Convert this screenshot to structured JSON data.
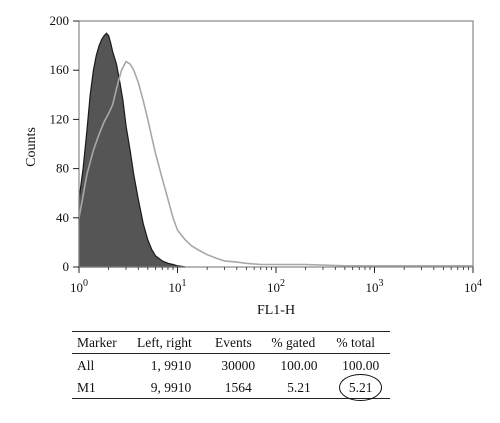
{
  "chart_data": {
    "type": "area",
    "title": "",
    "xlabel": "FL1-H",
    "ylabel": "Counts",
    "xscale": "log",
    "xlim": [
      1,
      10000
    ],
    "ylim": [
      0,
      200
    ],
    "grid": false,
    "x_ticks": [
      {
        "base": "10",
        "exp": "0",
        "value": 1
      },
      {
        "base": "10",
        "exp": "1",
        "value": 10
      },
      {
        "base": "10",
        "exp": "2",
        "value": 100
      },
      {
        "base": "10",
        "exp": "3",
        "value": 1000
      },
      {
        "base": "10",
        "exp": "4",
        "value": 10000
      }
    ],
    "y_ticks": [
      0,
      40,
      80,
      120,
      160,
      200
    ],
    "series": [
      {
        "style": "filled",
        "color": "#555555",
        "x": [
          1.0,
          1.1,
          1.2,
          1.3,
          1.4,
          1.5,
          1.6,
          1.7,
          1.8,
          1.9,
          2.0,
          2.1,
          2.2,
          2.4,
          2.6,
          2.8,
          3.0,
          3.3,
          3.6,
          4.0,
          4.5,
          5.0,
          5.5,
          6.0,
          7.0,
          8.0,
          9.0,
          10.0,
          11.0,
          12.0
        ],
        "y": [
          55,
          80,
          110,
          140,
          160,
          172,
          180,
          185,
          188,
          190,
          188,
          182,
          175,
          165,
          150,
          135,
          115,
          95,
          75,
          55,
          35,
          22,
          14,
          9,
          5,
          3,
          2,
          1,
          0.5,
          0
        ]
      },
      {
        "style": "outline",
        "color": "#a8a8a8",
        "x": [
          1.0,
          1.1,
          1.2,
          1.4,
          1.6,
          1.8,
          2.0,
          2.2,
          2.4,
          2.7,
          3.0,
          3.3,
          3.6,
          4.0,
          4.5,
          5.0,
          5.5,
          6.0,
          7.0,
          8.0,
          9.0,
          10.0,
          12.0,
          14.0,
          17.0,
          20.0,
          25.0,
          30.0,
          40.0,
          50.0,
          70.0,
          100.0,
          200.0,
          500.0,
          1000.0,
          3000.0,
          10000.0
        ],
        "y": [
          40,
          58,
          75,
          95,
          108,
          118,
          125,
          132,
          145,
          160,
          167,
          165,
          160,
          150,
          135,
          120,
          105,
          92,
          72,
          55,
          40,
          30,
          22,
          17,
          13,
          10,
          7,
          5,
          4,
          3,
          2,
          2,
          2,
          1,
          1,
          1,
          1
        ]
      }
    ]
  },
  "table": {
    "columns": [
      "Marker",
      "Left, right",
      "Events",
      "% gated",
      "% total"
    ],
    "rows": [
      {
        "marker": "All",
        "range": "1, 9910",
        "events": "30000",
        "gated": "100.00",
        "total": "100.00"
      },
      {
        "marker": "M1",
        "range": "9, 9910",
        "events": "1564",
        "gated": "5.21",
        "total": "5.21"
      }
    ]
  }
}
